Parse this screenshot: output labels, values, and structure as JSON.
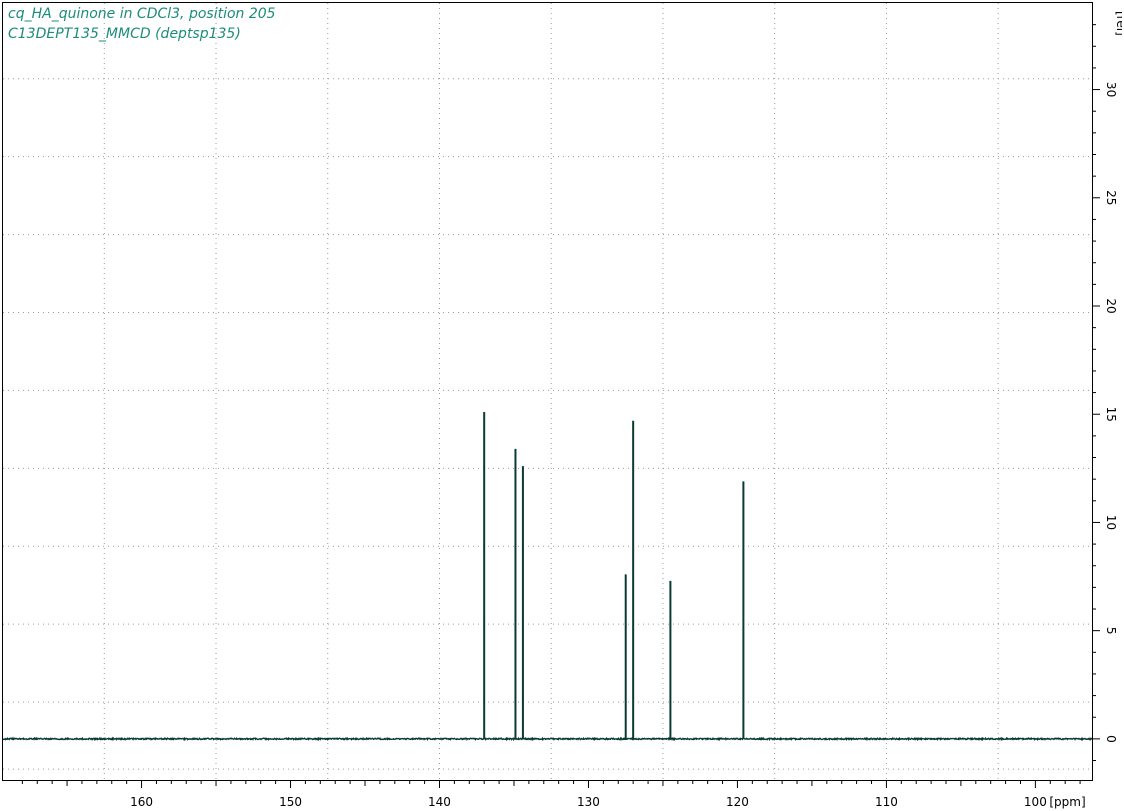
{
  "chart_data": {
    "type": "line",
    "title_lines": [
      "cq_HA_quinone in CDCl3, position 205",
      "C13DEPT135_MMCD (deptsp135)"
    ],
    "xlabel": "[ppm]",
    "ylabel": "[rel]",
    "x_reversed": true,
    "xlim": [
      169.3,
      96.2
    ],
    "ylim": [
      -1.9,
      34.0
    ],
    "x_ticks": [
      160,
      150,
      140,
      130,
      120,
      110,
      100
    ],
    "y_ticks": [
      0,
      5,
      10,
      15,
      20,
      25,
      30
    ],
    "x_grid": [
      162.5,
      155,
      147.5,
      140,
      132.5,
      125,
      117.5,
      110,
      102.5
    ],
    "y_grid": [
      -1.4,
      1.7,
      5.3,
      8.9,
      12.5,
      16.1,
      19.7,
      23.3,
      26.9,
      30.5
    ],
    "grid": true,
    "baseline": 0,
    "series": [
      {
        "peaks": [
          {
            "ppm": 137.0,
            "intensity": 15.1
          },
          {
            "ppm": 134.9,
            "intensity": 13.4
          },
          {
            "ppm": 134.4,
            "intensity": 12.6
          },
          {
            "ppm": 127.5,
            "intensity": 7.6
          },
          {
            "ppm": 127.0,
            "intensity": 14.7
          },
          {
            "ppm": 124.5,
            "intensity": 7.3
          },
          {
            "ppm": 119.6,
            "intensity": 11.9
          }
        ]
      }
    ],
    "colors": {
      "trace": "#0a3a34",
      "title": "#1c8c7a",
      "grid": "#9a9a9a",
      "axis": "#000000"
    }
  }
}
